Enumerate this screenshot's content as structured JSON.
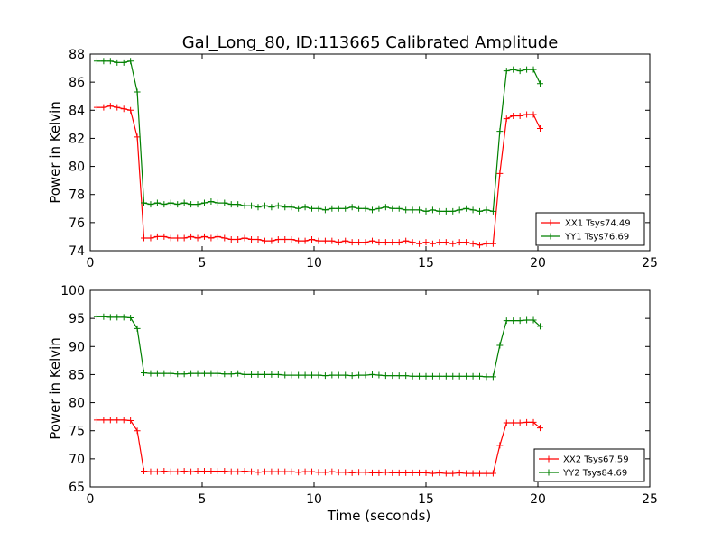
{
  "title": "Gal_Long_80, ID:113665 Calibrated Amplitude",
  "chart_data": [
    {
      "type": "line",
      "title": "Gal_Long_80, ID:113665 Calibrated Amplitude",
      "xlabel": "",
      "ylabel": "Power in Kelvin",
      "xlim": [
        0,
        25
      ],
      "ylim": [
        74,
        88
      ],
      "xticks": [
        "0",
        "5",
        "10",
        "15",
        "20",
        "25"
      ],
      "yticks": [
        "74",
        "76",
        "78",
        "80",
        "82",
        "84",
        "86",
        "88"
      ],
      "grid": false,
      "legend_position": "lower-right",
      "series": [
        {
          "name": "XX1 Tsys74.49",
          "color": "#ff0000",
          "x": [
            0.3,
            0.6,
            0.9,
            1.2,
            1.5,
            1.8,
            2.1,
            2.4,
            2.7,
            3.0,
            3.3,
            3.6,
            3.9,
            4.2,
            4.5,
            4.8,
            5.1,
            5.4,
            5.7,
            6.0,
            6.3,
            6.6,
            6.9,
            7.2,
            7.5,
            7.8,
            8.1,
            8.4,
            8.7,
            9.0,
            9.3,
            9.6,
            9.9,
            10.2,
            10.5,
            10.8,
            11.1,
            11.4,
            11.7,
            12.0,
            12.3,
            12.6,
            12.9,
            13.2,
            13.5,
            13.8,
            14.1,
            14.4,
            14.7,
            15.0,
            15.3,
            15.6,
            15.9,
            16.2,
            16.5,
            16.8,
            17.1,
            17.4,
            17.7,
            18.0,
            18.3,
            18.6,
            18.9,
            19.2,
            19.5,
            19.8,
            20.1
          ],
          "values": [
            84.2,
            84.2,
            84.3,
            84.2,
            84.1,
            84.0,
            82.1,
            74.9,
            74.9,
            75.0,
            75.0,
            74.9,
            74.9,
            74.9,
            75.0,
            74.9,
            75.0,
            74.9,
            75.0,
            74.9,
            74.8,
            74.8,
            74.9,
            74.8,
            74.8,
            74.7,
            74.7,
            74.8,
            74.8,
            74.8,
            74.7,
            74.7,
            74.8,
            74.7,
            74.7,
            74.7,
            74.6,
            74.7,
            74.6,
            74.6,
            74.6,
            74.7,
            74.6,
            74.6,
            74.6,
            74.6,
            74.7,
            74.6,
            74.5,
            74.6,
            74.5,
            74.6,
            74.6,
            74.5,
            74.6,
            74.6,
            74.5,
            74.4,
            74.5,
            74.5,
            79.5,
            83.4,
            83.6,
            83.6,
            83.7,
            83.7,
            82.7
          ]
        },
        {
          "name": "YY1 Tsys76.69",
          "color": "#008000",
          "x": [
            0.3,
            0.6,
            0.9,
            1.2,
            1.5,
            1.8,
            2.1,
            2.4,
            2.7,
            3.0,
            3.3,
            3.6,
            3.9,
            4.2,
            4.5,
            4.8,
            5.1,
            5.4,
            5.7,
            6.0,
            6.3,
            6.6,
            6.9,
            7.2,
            7.5,
            7.8,
            8.1,
            8.4,
            8.7,
            9.0,
            9.3,
            9.6,
            9.9,
            10.2,
            10.5,
            10.8,
            11.1,
            11.4,
            11.7,
            12.0,
            12.3,
            12.6,
            12.9,
            13.2,
            13.5,
            13.8,
            14.1,
            14.4,
            14.7,
            15.0,
            15.3,
            15.6,
            15.9,
            16.2,
            16.5,
            16.8,
            17.1,
            17.4,
            17.7,
            18.0,
            18.3,
            18.6,
            18.9,
            19.2,
            19.5,
            19.8,
            20.1
          ],
          "values": [
            87.5,
            87.5,
            87.5,
            87.4,
            87.4,
            87.5,
            85.3,
            77.4,
            77.3,
            77.4,
            77.3,
            77.4,
            77.3,
            77.4,
            77.3,
            77.3,
            77.4,
            77.5,
            77.4,
            77.4,
            77.3,
            77.3,
            77.2,
            77.2,
            77.1,
            77.2,
            77.1,
            77.2,
            77.1,
            77.1,
            77.0,
            77.1,
            77.0,
            77.0,
            76.9,
            77.0,
            77.0,
            77.0,
            77.1,
            77.0,
            77.0,
            76.9,
            77.0,
            77.1,
            77.0,
            77.0,
            76.9,
            76.9,
            76.9,
            76.8,
            76.9,
            76.8,
            76.8,
            76.8,
            76.9,
            77.0,
            76.9,
            76.8,
            76.9,
            76.8,
            82.5,
            86.8,
            86.9,
            86.8,
            86.9,
            86.9,
            85.9
          ]
        }
      ]
    },
    {
      "type": "line",
      "title": "",
      "xlabel": "Time (seconds)",
      "ylabel": "Power in Kelvin",
      "xlim": [
        0,
        25
      ],
      "ylim": [
        65,
        100
      ],
      "xticks": [
        "0",
        "5",
        "10",
        "15",
        "20",
        "25"
      ],
      "yticks": [
        "65",
        "70",
        "75",
        "80",
        "85",
        "90",
        "95",
        "100"
      ],
      "grid": false,
      "legend_position": "lower-right",
      "series": [
        {
          "name": "XX2 Tsys67.59",
          "color": "#ff0000",
          "x": [
            0.3,
            0.6,
            0.9,
            1.2,
            1.5,
            1.8,
            2.1,
            2.4,
            2.7,
            3.0,
            3.3,
            3.6,
            3.9,
            4.2,
            4.5,
            4.8,
            5.1,
            5.4,
            5.7,
            6.0,
            6.3,
            6.6,
            6.9,
            7.2,
            7.5,
            7.8,
            8.1,
            8.4,
            8.7,
            9.0,
            9.3,
            9.6,
            9.9,
            10.2,
            10.5,
            10.8,
            11.1,
            11.4,
            11.7,
            12.0,
            12.3,
            12.6,
            12.9,
            13.2,
            13.5,
            13.8,
            14.1,
            14.4,
            14.7,
            15.0,
            15.3,
            15.6,
            15.9,
            16.2,
            16.5,
            16.8,
            17.1,
            17.4,
            17.7,
            18.0,
            18.3,
            18.6,
            18.9,
            19.2,
            19.5,
            19.8,
            20.1
          ],
          "values": [
            76.9,
            76.9,
            76.9,
            76.9,
            76.9,
            76.8,
            75.0,
            67.8,
            67.7,
            67.7,
            67.8,
            67.7,
            67.7,
            67.8,
            67.7,
            67.8,
            67.8,
            67.8,
            67.8,
            67.8,
            67.7,
            67.7,
            67.8,
            67.7,
            67.6,
            67.7,
            67.7,
            67.7,
            67.7,
            67.7,
            67.6,
            67.7,
            67.7,
            67.6,
            67.6,
            67.7,
            67.6,
            67.6,
            67.5,
            67.6,
            67.6,
            67.5,
            67.5,
            67.6,
            67.5,
            67.5,
            67.5,
            67.5,
            67.5,
            67.5,
            67.4,
            67.5,
            67.4,
            67.4,
            67.5,
            67.4,
            67.4,
            67.4,
            67.4,
            67.4,
            72.4,
            76.4,
            76.4,
            76.4,
            76.5,
            76.5,
            75.5
          ]
        },
        {
          "name": "YY2 Tsys84.69",
          "color": "#008000",
          "x": [
            0.3,
            0.6,
            0.9,
            1.2,
            1.5,
            1.8,
            2.1,
            2.4,
            2.7,
            3.0,
            3.3,
            3.6,
            3.9,
            4.2,
            4.5,
            4.8,
            5.1,
            5.4,
            5.7,
            6.0,
            6.3,
            6.6,
            6.9,
            7.2,
            7.5,
            7.8,
            8.1,
            8.4,
            8.7,
            9.0,
            9.3,
            9.6,
            9.9,
            10.2,
            10.5,
            10.8,
            11.1,
            11.4,
            11.7,
            12.0,
            12.3,
            12.6,
            12.9,
            13.2,
            13.5,
            13.8,
            14.1,
            14.4,
            14.7,
            15.0,
            15.3,
            15.6,
            15.9,
            16.2,
            16.5,
            16.8,
            17.1,
            17.4,
            17.7,
            18.0,
            18.3,
            18.6,
            18.9,
            19.2,
            19.5,
            19.8,
            20.1
          ],
          "values": [
            95.3,
            95.3,
            95.2,
            95.2,
            95.2,
            95.1,
            93.2,
            85.3,
            85.2,
            85.2,
            85.2,
            85.2,
            85.1,
            85.1,
            85.2,
            85.2,
            85.2,
            85.2,
            85.2,
            85.1,
            85.1,
            85.2,
            85.0,
            85.0,
            85.0,
            85.0,
            85.0,
            85.0,
            84.9,
            84.9,
            84.9,
            84.9,
            84.9,
            84.9,
            84.8,
            84.9,
            84.9,
            84.9,
            84.8,
            84.9,
            84.9,
            85.0,
            84.9,
            84.8,
            84.8,
            84.8,
            84.8,
            84.7,
            84.7,
            84.7,
            84.7,
            84.7,
            84.7,
            84.7,
            84.7,
            84.7,
            84.7,
            84.7,
            84.6,
            84.6,
            90.2,
            94.6,
            94.6,
            94.6,
            94.7,
            94.7,
            93.6
          ]
        }
      ]
    }
  ]
}
